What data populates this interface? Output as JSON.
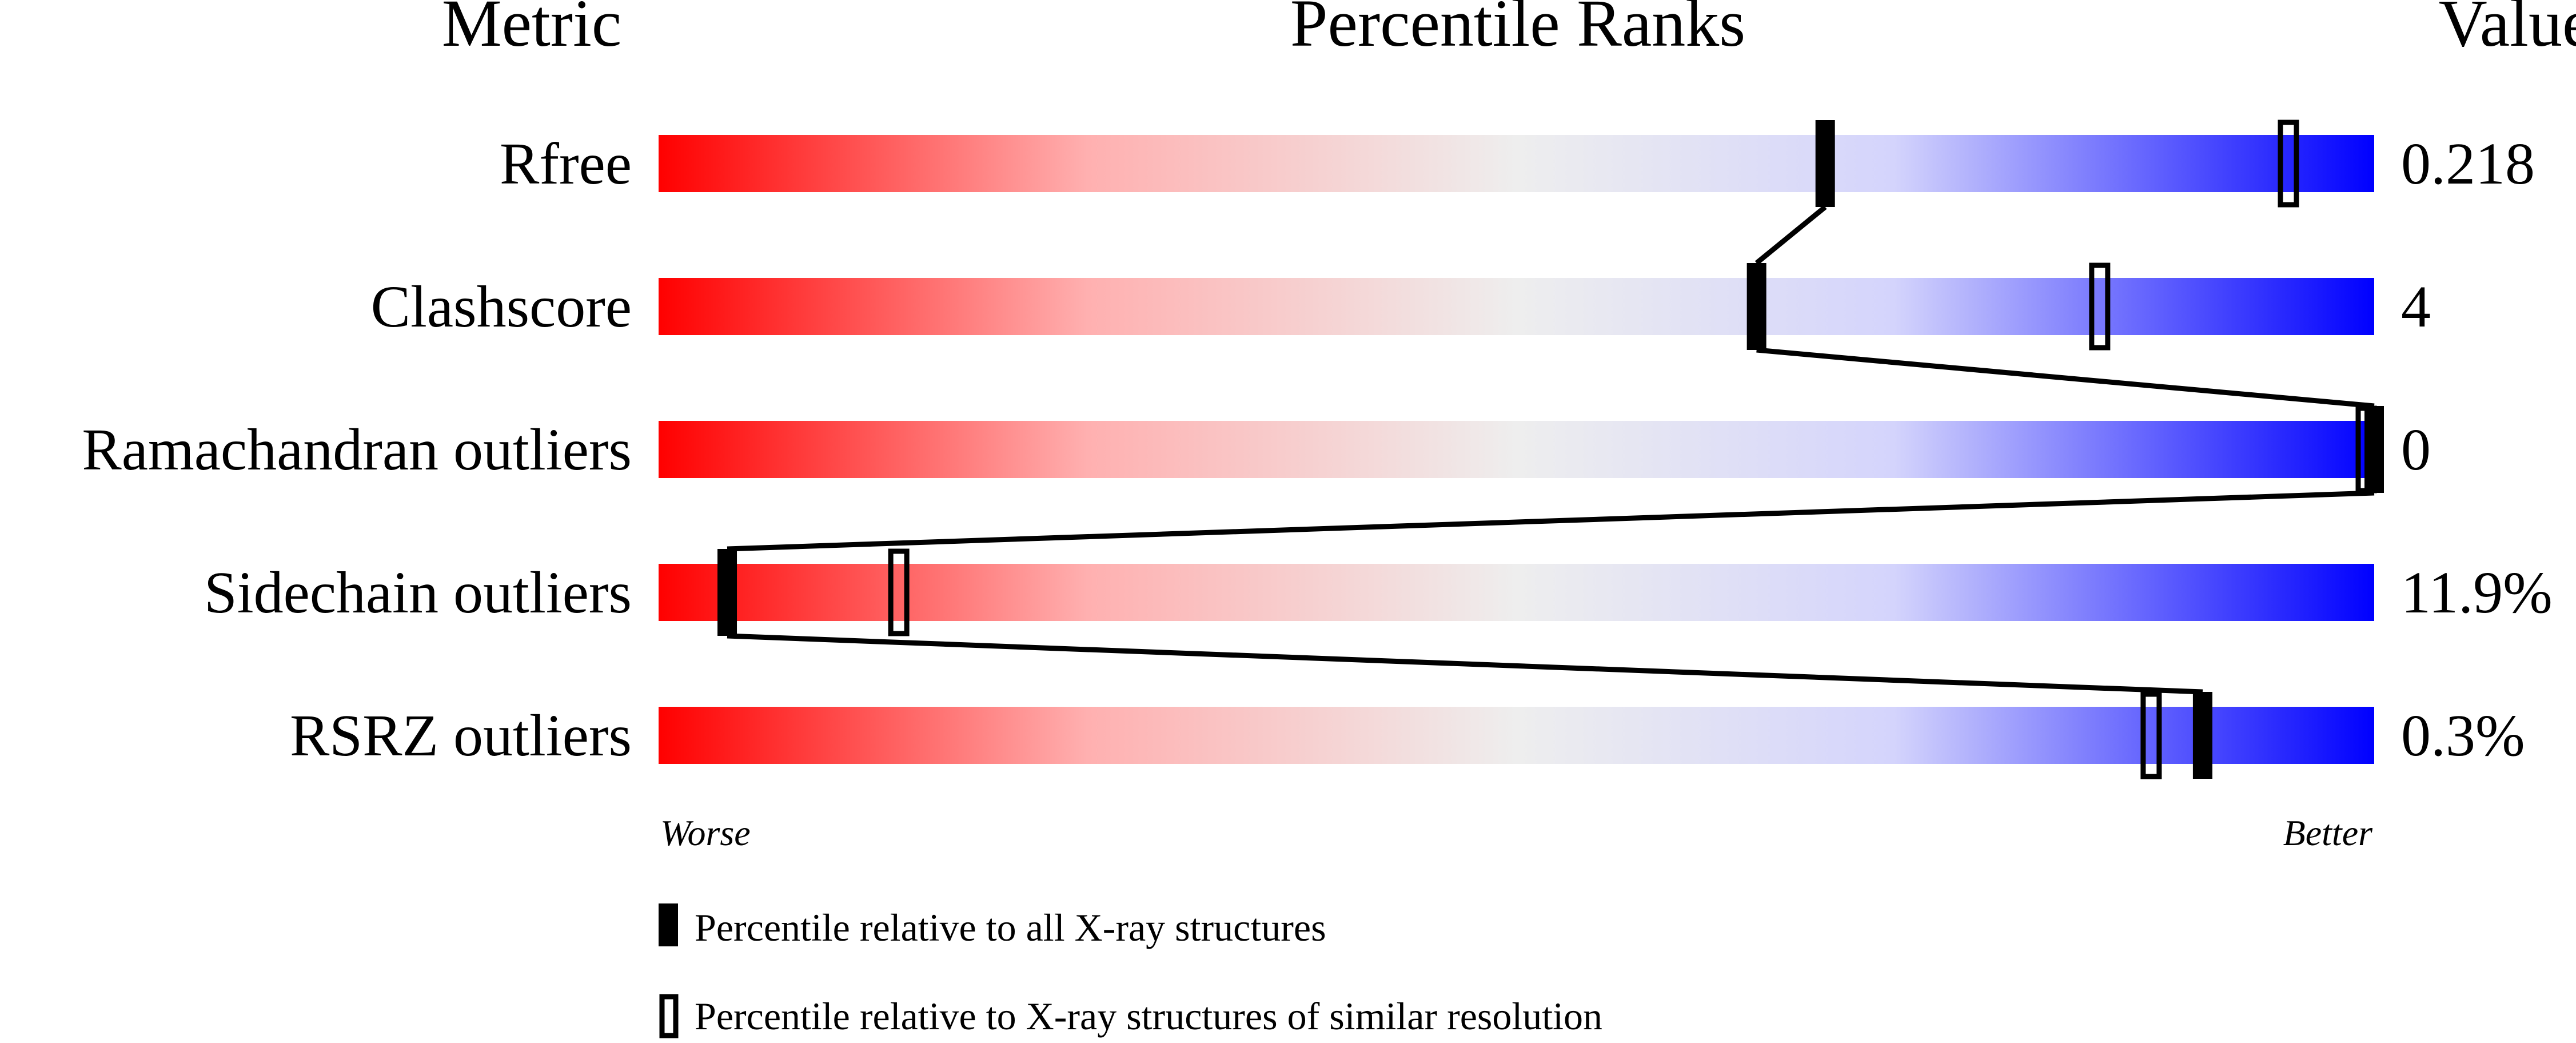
{
  "headers": {
    "metric": "Metric",
    "percentile": "Percentile Ranks",
    "value": "Value"
  },
  "chart_data": {
    "type": "percentile-slider",
    "xlim": [
      0,
      100
    ],
    "axis_labels": {
      "left": "Worse",
      "right": "Better"
    },
    "metrics": [
      {
        "name": "Rfree",
        "value": "0.218",
        "percentile_all": 68,
        "percentile_similar": 95
      },
      {
        "name": "Clashscore",
        "value": "4",
        "percentile_all": 64,
        "percentile_similar": 84
      },
      {
        "name": "Ramachandran outliers",
        "value": "0",
        "percentile_all": 100,
        "percentile_similar": 100
      },
      {
        "name": "Sidechain outliers",
        "value": "11.9%",
        "percentile_all": 4,
        "percentile_similar": 14
      },
      {
        "name": "RSRZ outliers",
        "value": "0.3%",
        "percentile_all": 90,
        "percentile_similar": 87
      }
    ],
    "gradient_colors": [
      "#ff0000",
      "#ffb0b0",
      "#eeeeee",
      "#d4d4fc",
      "#0000ff"
    ]
  },
  "legend": {
    "all": "Percentile relative to all X-ray structures",
    "similar": "Percentile relative to X-ray structures of similar resolution"
  }
}
